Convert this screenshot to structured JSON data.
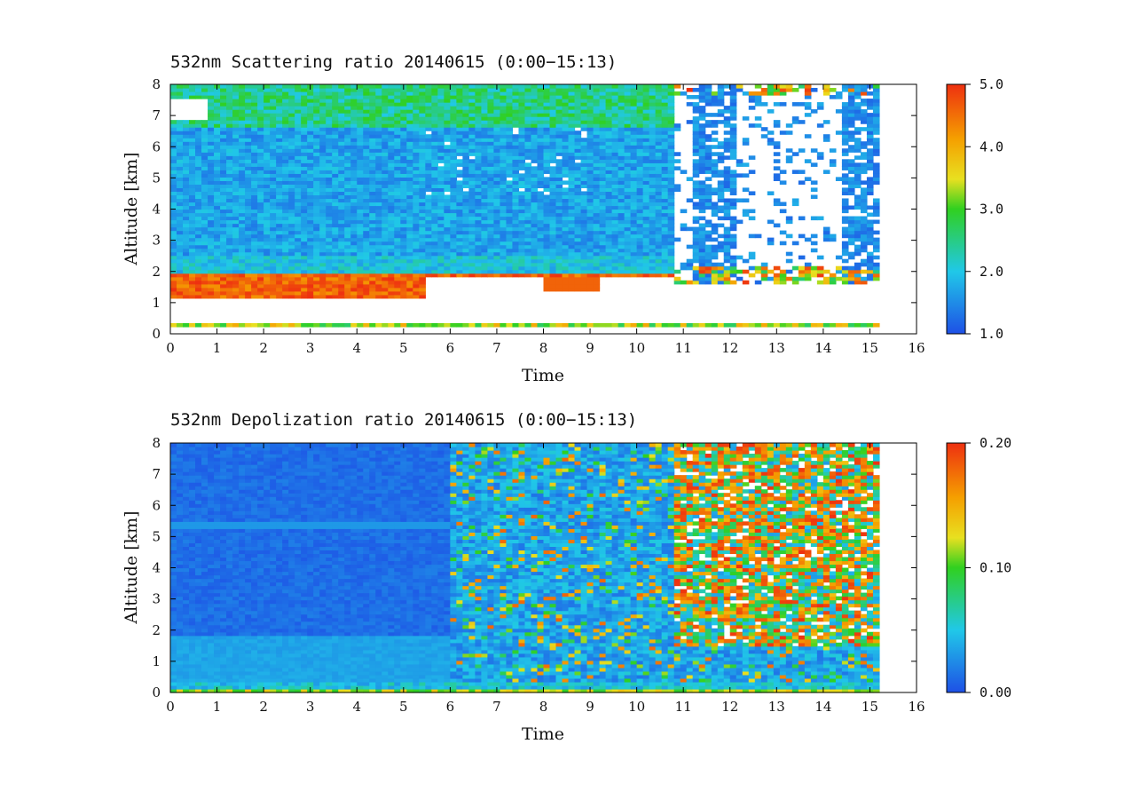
{
  "chart_data": [
    {
      "type": "heatmap",
      "title": "532nm Scattering ratio  20140615 (0:00−15:13)",
      "xlabel": "Time",
      "ylabel": "Altitude [km]",
      "xlim": [
        0,
        16
      ],
      "ylim": [
        0,
        8
      ],
      "xticks": [
        "0",
        "1",
        "2",
        "3",
        "4",
        "5",
        "6",
        "7",
        "8",
        "9",
        "10",
        "11",
        "12",
        "13",
        "14",
        "15",
        "16"
      ],
      "yticks": [
        "0",
        "1",
        "2",
        "3",
        "4",
        "5",
        "6",
        "7",
        "8"
      ],
      "data_end_time": 15.22,
      "colorbar": {
        "min": 1.0,
        "max": 5.0,
        "ticks": [
          "1.0",
          "2.0",
          "3.0",
          "4.0",
          "5.0"
        ],
        "tick_values": [
          1.0,
          2.0,
          3.0,
          4.0,
          5.0
        ]
      },
      "features": [
        {
          "name": "background aerosol",
          "time": [
            0,
            10.8
          ],
          "altitude": [
            1.9,
            6.6
          ],
          "value": 1.8
        },
        {
          "name": "aerosol layer top",
          "time": [
            0,
            10.8
          ],
          "altitude": [
            6.6,
            8.0
          ],
          "value": 2.6
        },
        {
          "name": "low cloud",
          "time": [
            0,
            5.5
          ],
          "altitude": [
            1.2,
            1.9
          ],
          "value": 4.5
        },
        {
          "name": "low cloud",
          "time": [
            8.0,
            9.2
          ],
          "altitude": [
            1.4,
            1.8
          ],
          "value": 4.6
        },
        {
          "name": "no data gap",
          "time": [
            0,
            5.5
          ],
          "altitude": [
            0.3,
            1.2
          ],
          "value": null
        },
        {
          "name": "near-ground band",
          "time": [
            0,
            15.22
          ],
          "altitude": [
            0.25,
            0.35
          ],
          "value": 3.5
        },
        {
          "name": "sparse cloud region",
          "time": [
            10.8,
            15.22
          ],
          "altitude": [
            1.5,
            8.0
          ],
          "value": 1.3
        }
      ]
    },
    {
      "type": "heatmap",
      "title": "532nm Depolization ratio  20140615 (0:00−15:13)",
      "xlabel": "Time",
      "ylabel": "Altitude [km]",
      "xlim": [
        0,
        16
      ],
      "ylim": [
        0,
        8
      ],
      "xticks": [
        "0",
        "1",
        "2",
        "3",
        "4",
        "5",
        "6",
        "7",
        "8",
        "9",
        "10",
        "11",
        "12",
        "13",
        "14",
        "15",
        "16"
      ],
      "yticks": [
        "0",
        "1",
        "2",
        "3",
        "4",
        "5",
        "6",
        "7",
        "8"
      ],
      "data_end_time": 15.22,
      "colorbar": {
        "min": 0.0,
        "max": 0.2,
        "ticks": [
          "0.00",
          "0.10",
          "0.20"
        ],
        "tick_values": [
          0.0,
          0.1,
          0.2
        ]
      },
      "features": [
        {
          "name": "low depolarization background",
          "time": [
            0,
            6.0
          ],
          "altitude": [
            0.3,
            8.0
          ],
          "value": 0.01
        },
        {
          "name": "boundary layer",
          "time": [
            0,
            15.22
          ],
          "altitude": [
            0.3,
            1.8
          ],
          "value": 0.03
        },
        {
          "name": "mixed region",
          "time": [
            6.0,
            10.8
          ],
          "altitude": [
            0.3,
            8.0
          ],
          "value": 0.05
        },
        {
          "name": "high depolarization clouds",
          "time": [
            10.8,
            15.22
          ],
          "altitude": [
            1.5,
            8.0
          ],
          "value": 0.15
        }
      ]
    }
  ]
}
